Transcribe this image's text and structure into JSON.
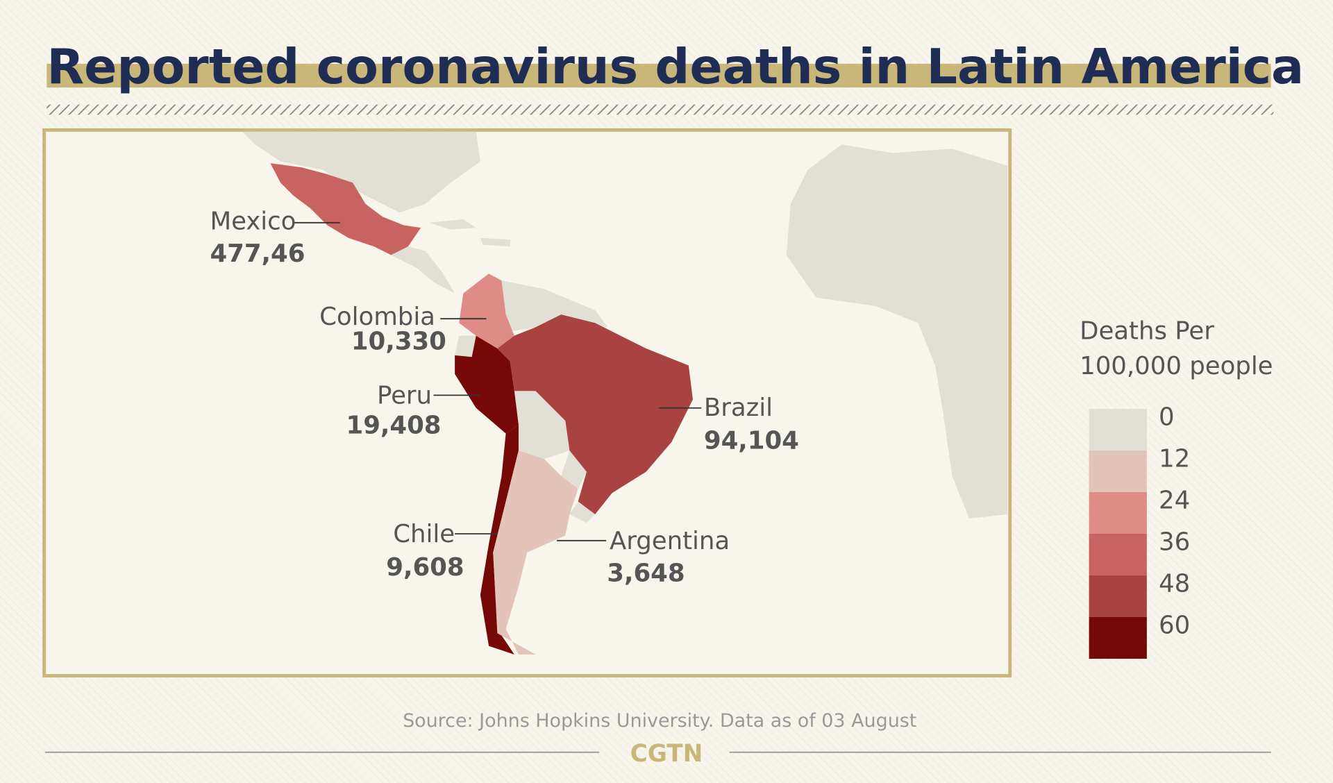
{
  "title": "Reported coronavirus deaths in Latin America",
  "countries": [
    {
      "name": "Mexico",
      "deaths": "477,46",
      "color": "#c76461"
    },
    {
      "name": "Colombia",
      "deaths": "10,330",
      "color": "#df8b88"
    },
    {
      "name": "Peru",
      "deaths": "19,408",
      "color": "#760808"
    },
    {
      "name": "Brazil",
      "deaths": "94,104",
      "color": "#a94342"
    },
    {
      "name": "Chile",
      "deaths": "9,608",
      "color": "#760808"
    },
    {
      "name": "Argentina",
      "deaths": "3,648",
      "color": "#e2c4b8"
    }
  ],
  "legend": {
    "title": [
      "Deaths Per",
      "100,000 people"
    ],
    "stops": [
      {
        "value": 0,
        "color": "#e2dfd5"
      },
      {
        "value": 12,
        "color": "#e3c4b8"
      },
      {
        "value": 24,
        "color": "#df8b88"
      },
      {
        "value": 36,
        "color": "#c76461"
      },
      {
        "value": 48,
        "color": "#a94342"
      },
      {
        "value": 60,
        "color": "#760808"
      }
    ]
  },
  "source": "Source: Johns Hopkins University. Data as of 03 August",
  "logo": "CGTN"
}
